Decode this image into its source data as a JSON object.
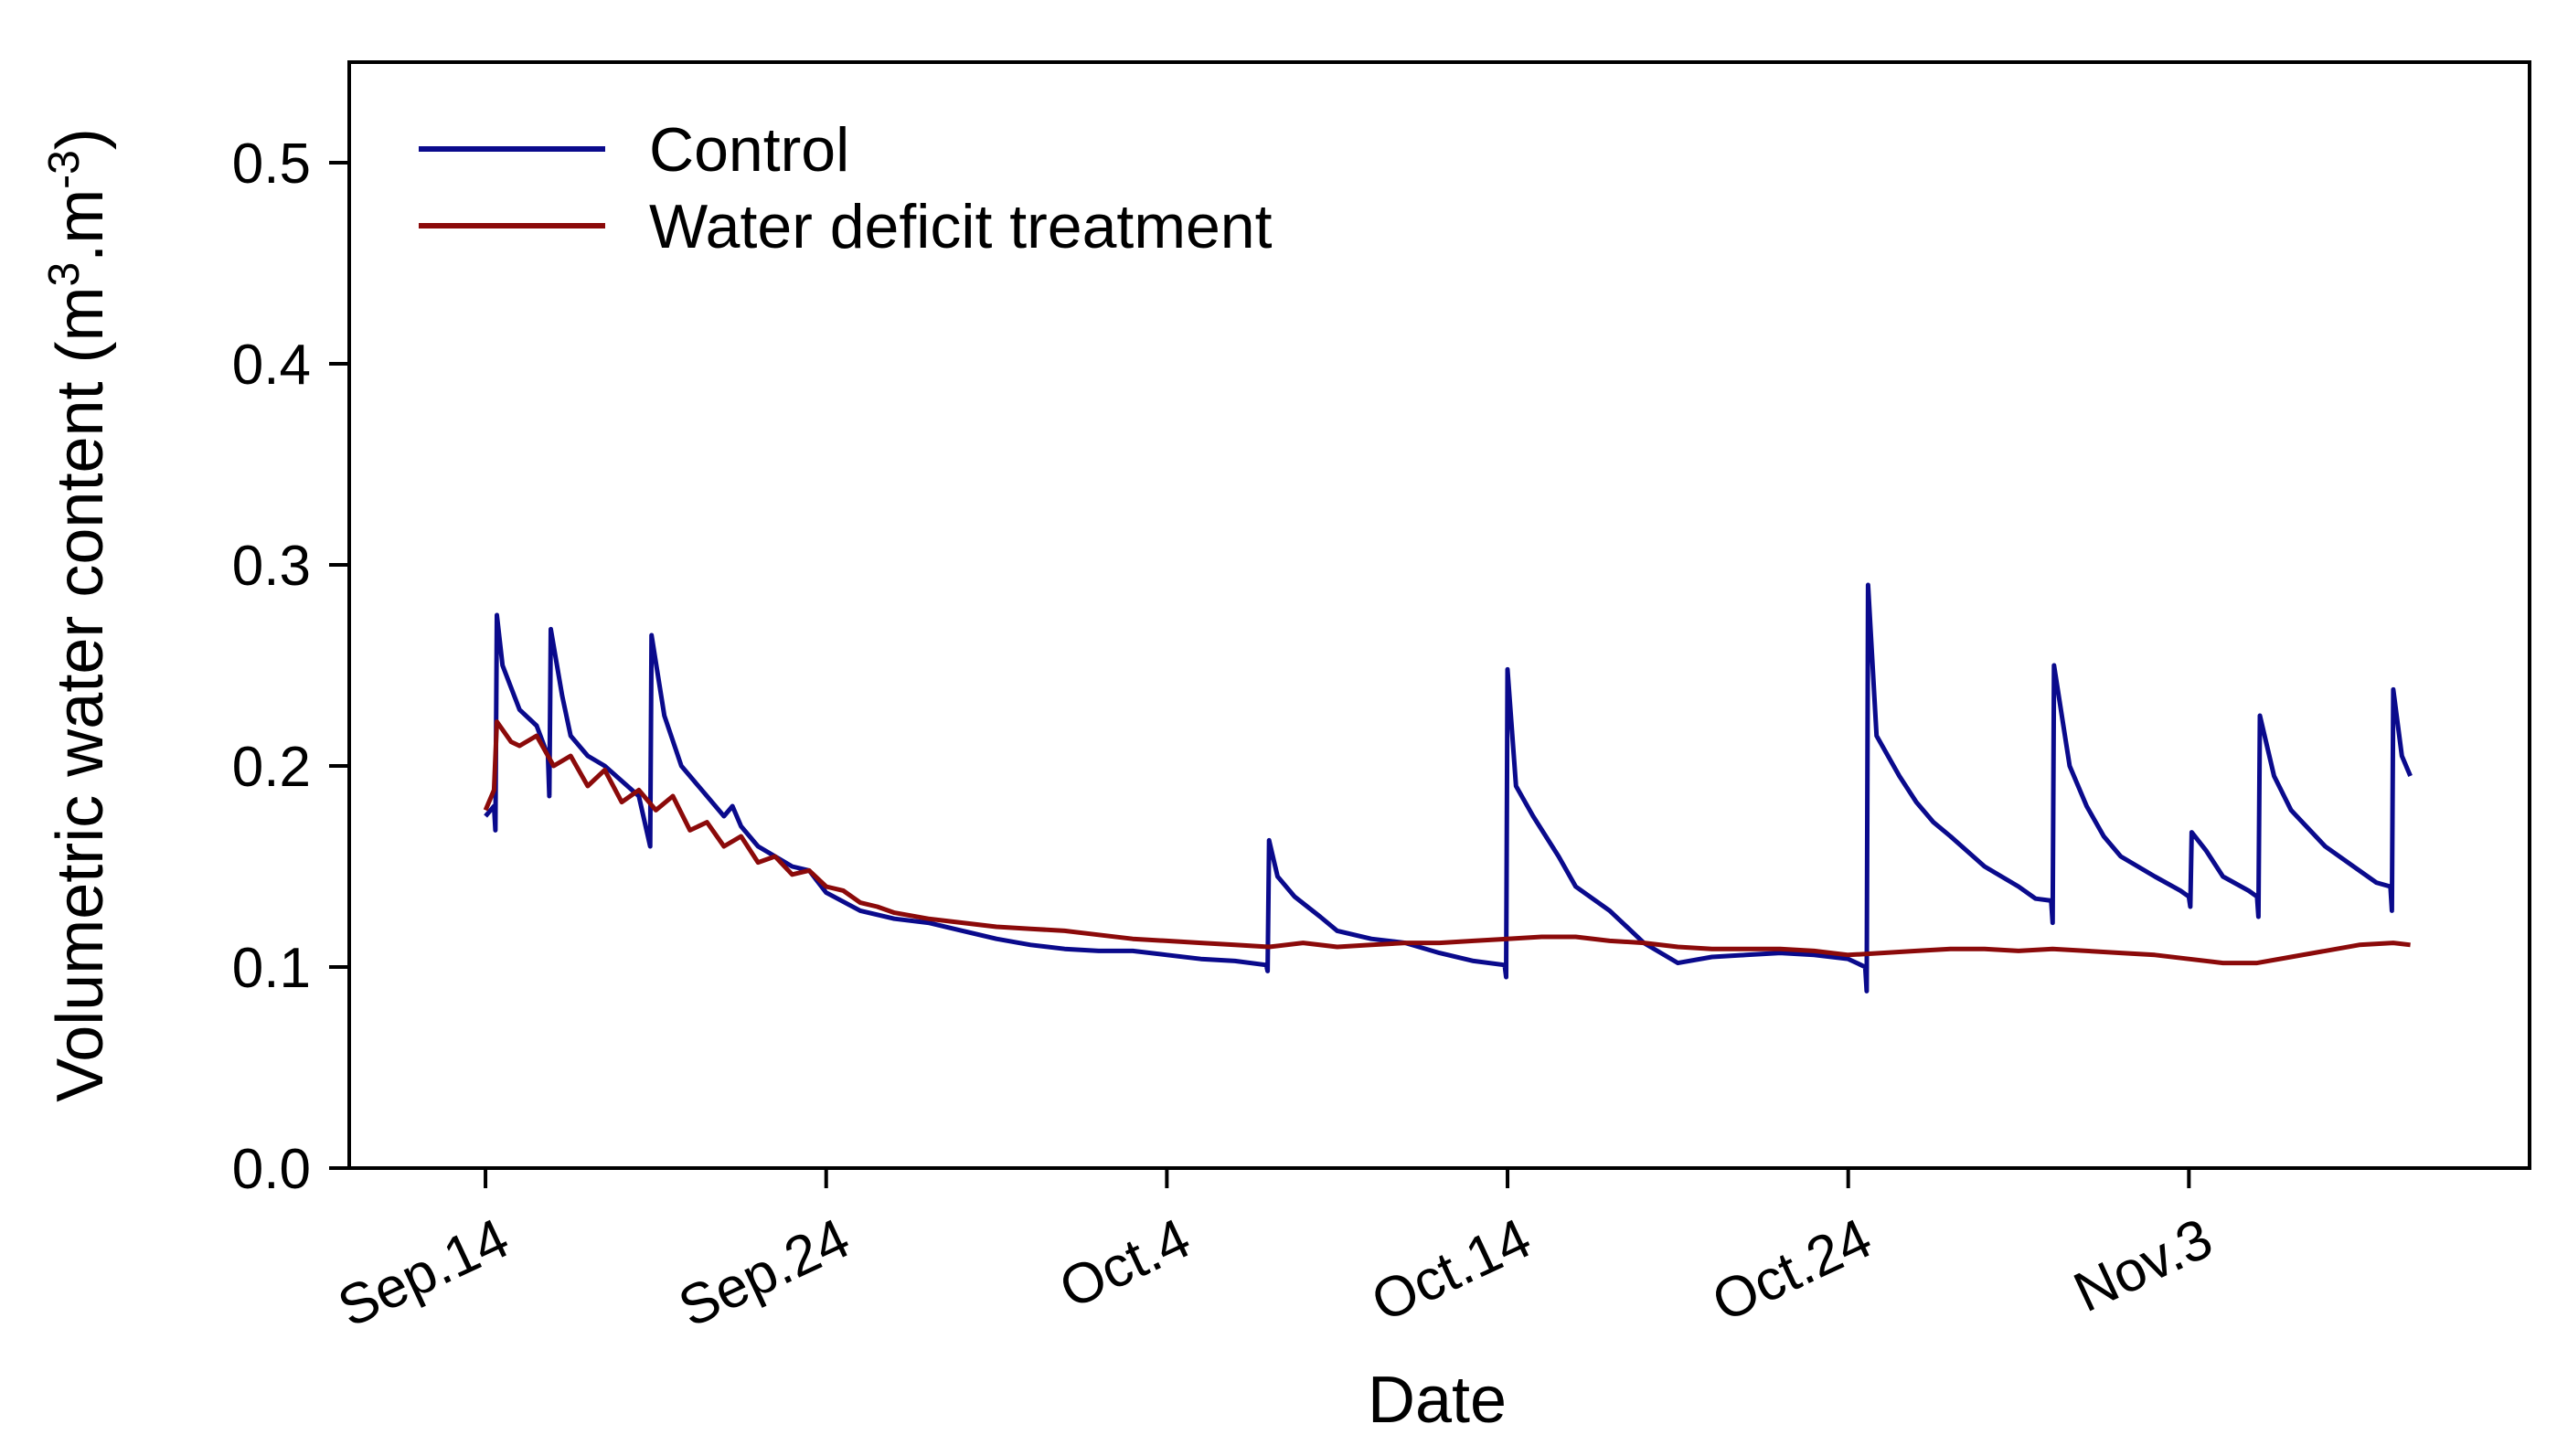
{
  "chart_data": {
    "type": "line",
    "title": "",
    "xlabel": "Date",
    "ylabel": {
      "main": "Volumetric water content (m",
      "sup1": "3",
      "mid": ".m",
      "sup2": "-3",
      "end": ")"
    },
    "ylim": [
      0.0,
      0.55
    ],
    "yticks": [
      {
        "value": 0.0,
        "label": "0.0"
      },
      {
        "value": 0.1,
        "label": "0.1"
      },
      {
        "value": 0.2,
        "label": "0.2"
      },
      {
        "value": 0.3,
        "label": "0.3"
      },
      {
        "value": 0.4,
        "label": "0.4"
      },
      {
        "value": 0.5,
        "label": "0.5"
      }
    ],
    "xlim": [
      "Sep 10",
      "Nov 13"
    ],
    "xticks": [
      {
        "date": "Sep 14",
        "label": "Sep.14"
      },
      {
        "date": "Sep 24",
        "label": "Sep.24"
      },
      {
        "date": "Oct 4",
        "label": "Oct.4"
      },
      {
        "date": "Oct 14",
        "label": "Oct.14"
      },
      {
        "date": "Oct 24",
        "label": "Oct.24"
      },
      {
        "date": "Nov 3",
        "label": "Nov.3"
      }
    ],
    "legend_position": "top-left",
    "grid": false,
    "series": [
      {
        "name": "Control",
        "color": "#0a0a8c",
        "points": [
          [
            "Sep 14 00:00",
            0.175
          ],
          [
            "Sep 14 06:00",
            0.18
          ],
          [
            "Sep 14 07:00",
            0.168
          ],
          [
            "Sep 14 08:00",
            0.275
          ],
          [
            "Sep 14 12:00",
            0.25
          ],
          [
            "Sep 15 00:00",
            0.228
          ],
          [
            "Sep 15 12:00",
            0.22
          ],
          [
            "Sep 15 20:00",
            0.205
          ],
          [
            "Sep 15 21:00",
            0.185
          ],
          [
            "Sep 15 22:00",
            0.268
          ],
          [
            "Sep 16 06:00",
            0.235
          ],
          [
            "Sep 16 12:00",
            0.215
          ],
          [
            "Sep 17 00:00",
            0.205
          ],
          [
            "Sep 17 12:00",
            0.2
          ],
          [
            "Sep 18 12:00",
            0.185
          ],
          [
            "Sep 18 20:00",
            0.16
          ],
          [
            "Sep 18 21:00",
            0.265
          ],
          [
            "Sep 19 06:00",
            0.225
          ],
          [
            "Sep 19 18:00",
            0.2
          ],
          [
            "Sep 20 12:00",
            0.185
          ],
          [
            "Sep 21 00:00",
            0.175
          ],
          [
            "Sep 21 06:00",
            0.18
          ],
          [
            "Sep 21 12:00",
            0.17
          ],
          [
            "Sep 22 00:00",
            0.16
          ],
          [
            "Sep 23 00:00",
            0.15
          ],
          [
            "Sep 23 12:00",
            0.148
          ],
          [
            "Sep 24 00:00",
            0.137
          ],
          [
            "Sep 25 00:00",
            0.128
          ],
          [
            "Sep 26 00:00",
            0.124
          ],
          [
            "Sep 27 00:00",
            0.122
          ],
          [
            "Sep 28 00:00",
            0.118
          ],
          [
            "Sep 29 00:00",
            0.114
          ],
          [
            "Sep 30 00:00",
            0.111
          ],
          [
            "Oct 1 00:00",
            0.109
          ],
          [
            "Oct 2 00:00",
            0.108
          ],
          [
            "Oct 3 00:00",
            0.108
          ],
          [
            "Oct 4 00:00",
            0.106
          ],
          [
            "Oct 5 00:00",
            0.104
          ],
          [
            "Oct 6 00:00",
            0.103
          ],
          [
            "Oct 6 22:00",
            0.101
          ],
          [
            "Oct 6 23:00",
            0.098
          ],
          [
            "Oct 7 00:00",
            0.163
          ],
          [
            "Oct 7 06:00",
            0.145
          ],
          [
            "Oct 7 18:00",
            0.135
          ],
          [
            "Oct 8 12:00",
            0.125
          ],
          [
            "Oct 9 00:00",
            0.118
          ],
          [
            "Oct 10 00:00",
            0.114
          ],
          [
            "Oct 11 00:00",
            0.112
          ],
          [
            "Oct 12 00:00",
            0.107
          ],
          [
            "Oct 13 00:00",
            0.103
          ],
          [
            "Oct 13 22:00",
            0.101
          ],
          [
            "Oct 13 23:00",
            0.095
          ],
          [
            "Oct 14 00:00",
            0.248
          ],
          [
            "Oct 14 06:00",
            0.19
          ],
          [
            "Oct 14 18:00",
            0.175
          ],
          [
            "Oct 15 12:00",
            0.155
          ],
          [
            "Oct 16 00:00",
            0.14
          ],
          [
            "Oct 17 00:00",
            0.128
          ],
          [
            "Oct 17 12:00",
            0.12
          ],
          [
            "Oct 18 00:00",
            0.112
          ],
          [
            "Oct 19 00:00",
            0.102
          ],
          [
            "Oct 20 00:00",
            0.105
          ],
          [
            "Oct 21 00:00",
            0.106
          ],
          [
            "Oct 22 00:00",
            0.107
          ],
          [
            "Oct 23 00:00",
            0.106
          ],
          [
            "Oct 24 00:00",
            0.104
          ],
          [
            "Oct 24 12:00",
            0.1
          ],
          [
            "Oct 24 13:00",
            0.088
          ],
          [
            "Oct 24 14:00",
            0.29
          ],
          [
            "Oct 24 20:00",
            0.215
          ],
          [
            "Oct 25 12:00",
            0.195
          ],
          [
            "Oct 26 00:00",
            0.182
          ],
          [
            "Oct 26 12:00",
            0.172
          ],
          [
            "Oct 27 00:00",
            0.165
          ],
          [
            "Oct 28 00:00",
            0.15
          ],
          [
            "Oct 29 00:00",
            0.14
          ],
          [
            "Oct 29 12:00",
            0.134
          ],
          [
            "Oct 29 23:00",
            0.133
          ],
          [
            "Oct 30 00:00",
            0.122
          ],
          [
            "Oct 30 01:00",
            0.25
          ],
          [
            "Oct 30 12:00",
            0.2
          ],
          [
            "Oct 31 00:00",
            0.18
          ],
          [
            "Oct 31 12:00",
            0.165
          ],
          [
            "Nov 1 00:00",
            0.155
          ],
          [
            "Nov 2 00:00",
            0.145
          ],
          [
            "Nov 2 18:00",
            0.138
          ],
          [
            "Nov 3 00:00",
            0.135
          ],
          [
            "Nov 3 01:00",
            0.13
          ],
          [
            "Nov 3 02:00",
            0.167
          ],
          [
            "Nov 3 12:00",
            0.158
          ],
          [
            "Nov 4 00:00",
            0.145
          ],
          [
            "Nov 4 18:00",
            0.138
          ],
          [
            "Nov 5 00:00",
            0.135
          ],
          [
            "Nov 5 01:00",
            0.125
          ],
          [
            "Nov 5 02:00",
            0.225
          ],
          [
            "Nov 5 12:00",
            0.195
          ],
          [
            "Nov 6 00:00",
            0.178
          ],
          [
            "Nov 7 00:00",
            0.16
          ],
          [
            "Nov 8 00:00",
            0.148
          ],
          [
            "Nov 8 12:00",
            0.142
          ],
          [
            "Nov 8 22:00",
            0.14
          ],
          [
            "Nov 8 23:00",
            0.128
          ],
          [
            "Nov 9 00:00",
            0.238
          ],
          [
            "Nov 9 06:00",
            0.205
          ],
          [
            "Nov 9 12:00",
            0.195
          ]
        ]
      },
      {
        "name": "Water deficit treatment",
        "color": "#8b0a0a",
        "points": [
          [
            "Sep 14 00:00",
            0.178
          ],
          [
            "Sep 14 06:00",
            0.188
          ],
          [
            "Sep 14 08:00",
            0.222
          ],
          [
            "Sep 14 18:00",
            0.212
          ],
          [
            "Sep 15 00:00",
            0.21
          ],
          [
            "Sep 15 12:00",
            0.215
          ],
          [
            "Sep 16 00:00",
            0.2
          ],
          [
            "Sep 16 12:00",
            0.205
          ],
          [
            "Sep 17 00:00",
            0.19
          ],
          [
            "Sep 17 12:00",
            0.198
          ],
          [
            "Sep 18 00:00",
            0.182
          ],
          [
            "Sep 18 12:00",
            0.188
          ],
          [
            "Sep 19 00:00",
            0.178
          ],
          [
            "Sep 19 12:00",
            0.185
          ],
          [
            "Sep 20 00:00",
            0.168
          ],
          [
            "Sep 20 12:00",
            0.172
          ],
          [
            "Sep 21 00:00",
            0.16
          ],
          [
            "Sep 21 12:00",
            0.165
          ],
          [
            "Sep 22 00:00",
            0.152
          ],
          [
            "Sep 22 12:00",
            0.155
          ],
          [
            "Sep 23 00:00",
            0.146
          ],
          [
            "Sep 23 12:00",
            0.148
          ],
          [
            "Sep 24 00:00",
            0.14
          ],
          [
            "Sep 24 12:00",
            0.138
          ],
          [
            "Sep 25 00:00",
            0.132
          ],
          [
            "Sep 25 12:00",
            0.13
          ],
          [
            "Sep 26 00:00",
            0.127
          ],
          [
            "Sep 27 00:00",
            0.124
          ],
          [
            "Sep 28 00:00",
            0.122
          ],
          [
            "Sep 29 00:00",
            0.12
          ],
          [
            "Sep 30 00:00",
            0.119
          ],
          [
            "Oct 1 00:00",
            0.118
          ],
          [
            "Oct 2 00:00",
            0.116
          ],
          [
            "Oct 3 00:00",
            0.114
          ],
          [
            "Oct 4 00:00",
            0.113
          ],
          [
            "Oct 5 00:00",
            0.112
          ],
          [
            "Oct 6 00:00",
            0.111
          ],
          [
            "Oct 7 00:00",
            0.11
          ],
          [
            "Oct 8 00:00",
            0.112
          ],
          [
            "Oct 9 00:00",
            0.11
          ],
          [
            "Oct 10 00:00",
            0.111
          ],
          [
            "Oct 11 00:00",
            0.112
          ],
          [
            "Oct 12 00:00",
            0.112
          ],
          [
            "Oct 13 00:00",
            0.113
          ],
          [
            "Oct 14 00:00",
            0.114
          ],
          [
            "Oct 15 00:00",
            0.115
          ],
          [
            "Oct 16 00:00",
            0.115
          ],
          [
            "Oct 17 00:00",
            0.113
          ],
          [
            "Oct 18 00:00",
            0.112
          ],
          [
            "Oct 19 00:00",
            0.11
          ],
          [
            "Oct 20 00:00",
            0.109
          ],
          [
            "Oct 21 00:00",
            0.109
          ],
          [
            "Oct 22 00:00",
            0.109
          ],
          [
            "Oct 23 00:00",
            0.108
          ],
          [
            "Oct 24 00:00",
            0.106
          ],
          [
            "Oct 25 00:00",
            0.107
          ],
          [
            "Oct 26 00:00",
            0.108
          ],
          [
            "Oct 27 00:00",
            0.109
          ],
          [
            "Oct 28 00:00",
            0.109
          ],
          [
            "Oct 29 00:00",
            0.108
          ],
          [
            "Oct 30 00:00",
            0.109
          ],
          [
            "Oct 31 00:00",
            0.108
          ],
          [
            "Nov 1 00:00",
            0.107
          ],
          [
            "Nov 2 00:00",
            0.106
          ],
          [
            "Nov 3 00:00",
            0.104
          ],
          [
            "Nov 4 00:00",
            0.102
          ],
          [
            "Nov 5 00:00",
            0.102
          ],
          [
            "Nov 6 00:00",
            0.105
          ],
          [
            "Nov 7 00:00",
            0.108
          ],
          [
            "Nov 8 00:00",
            0.111
          ],
          [
            "Nov 9 00:00",
            0.112
          ],
          [
            "Nov 9 12:00",
            0.111
          ]
        ]
      }
    ]
  }
}
